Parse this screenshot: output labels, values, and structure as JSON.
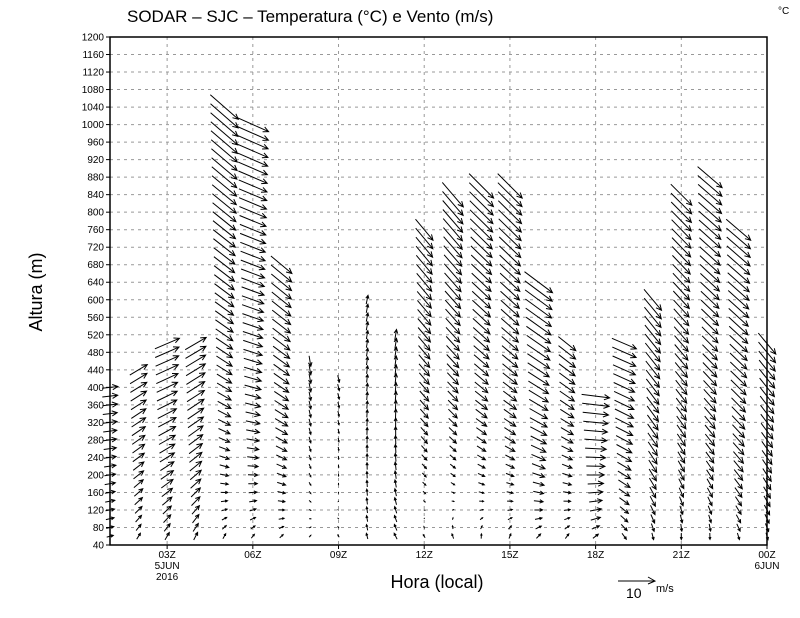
{
  "chart_data": {
    "type": "vector",
    "title": "SODAR – SJC – Temperatura (°C) e Vento (m/s)",
    "colorbar_unit": "°C",
    "xlabel": "Hora (local)",
    "ylabel": "Altura (m)",
    "xlim_hours": [
      1,
      24
    ],
    "ylim": [
      40,
      1200
    ],
    "grid": true,
    "x_ticks": [
      {
        "hour": 3,
        "label": "03Z",
        "sub1": "5JUN",
        "sub2": "2016"
      },
      {
        "hour": 6,
        "label": "06Z"
      },
      {
        "hour": 9,
        "label": "09Z"
      },
      {
        "hour": 12,
        "label": "12Z"
      },
      {
        "hour": 15,
        "label": "15Z"
      },
      {
        "hour": 18,
        "label": "18Z"
      },
      {
        "hour": 21,
        "label": "21Z"
      },
      {
        "hour": 24,
        "label": "00Z",
        "sub1": "6JUN"
      }
    ],
    "y_ticks": [
      40,
      80,
      120,
      160,
      200,
      240,
      280,
      320,
      360,
      400,
      440,
      480,
      520,
      560,
      600,
      640,
      680,
      720,
      760,
      800,
      840,
      880,
      920,
      960,
      1000,
      1040,
      1080,
      1120,
      1160,
      1200
    ],
    "level_step_m": 20,
    "reference_vector": {
      "value": 10,
      "label": "10",
      "unit": "m/s"
    },
    "profiles": [
      {
        "hour": 1,
        "top": 400,
        "u_base": 1.5,
        "v_base": 0.5,
        "u_top": 4.5,
        "v_top": 0.5
      },
      {
        "hour": 2,
        "top": 440,
        "u_base": 0.5,
        "v_base": 1.5,
        "u_top": 5,
        "v_top": 3
      },
      {
        "hour": 3,
        "top": 500,
        "u_base": 0.5,
        "v_base": 2,
        "u_top": 7,
        "v_top": 3
      },
      {
        "hour": 4,
        "top": 500,
        "u_base": 0.5,
        "v_base": 2,
        "u_top": 6,
        "v_top": 3.5
      },
      {
        "hour": 5,
        "top": 1040,
        "u_base": 0.3,
        "v_base": 2,
        "u_top": 8,
        "v_top": -7
      },
      {
        "hour": 6,
        "top": 1000,
        "u_base": 0.3,
        "v_base": 1.5,
        "u_top": 9,
        "v_top": -4
      },
      {
        "hour": 7,
        "top": 680,
        "u_base": 0.5,
        "v_base": 1.5,
        "u_top": 6,
        "v_top": -5
      },
      {
        "hour": 8,
        "top": 460,
        "u_base": 0.5,
        "v_base": 1,
        "u_top": 0.5,
        "v_top": -3
      },
      {
        "hour": 9,
        "top": 430,
        "u_base": -0.5,
        "v_base": 1,
        "u_top": 0.5,
        "v_top": -2
      },
      {
        "hour": 10,
        "top": 600,
        "u_base": -0.5,
        "v_base": 1.5,
        "u_top": 0.5,
        "v_top": 2.5
      },
      {
        "hour": 11,
        "top": 520,
        "u_base": -1,
        "v_base": 1.5,
        "u_top": 0.5,
        "v_top": 3
      },
      {
        "hour": 12,
        "top": 760,
        "u_base": -1,
        "v_base": 1.5,
        "u_top": 5,
        "v_top": -6
      },
      {
        "hour": 13,
        "top": 840,
        "u_base": -1,
        "v_base": 2,
        "u_top": 6,
        "v_top": -7
      },
      {
        "hour": 14,
        "top": 860,
        "u_base": -0.5,
        "v_base": 2,
        "u_top": 7,
        "v_top": -7
      },
      {
        "hour": 15,
        "top": 860,
        "u_base": 0,
        "v_base": 2,
        "u_top": 7,
        "v_top": -7
      },
      {
        "hour": 16,
        "top": 640,
        "u_base": 0.5,
        "v_base": 2,
        "u_top": 8,
        "v_top": -6
      },
      {
        "hour": 17,
        "top": 500,
        "u_base": 0.5,
        "v_base": 2,
        "u_top": 5,
        "v_top": -4
      },
      {
        "hour": 18,
        "top": 380,
        "u_base": 0.5,
        "v_base": 1.5,
        "u_top": 8,
        "v_top": -1
      },
      {
        "hour": 19,
        "top": 500,
        "u_base": 0.5,
        "v_base": -1.5,
        "u_top": 7,
        "v_top": -3
      },
      {
        "hour": 20,
        "top": 600,
        "u_base": 0,
        "v_base": -1.5,
        "u_top": 5,
        "v_top": -6
      },
      {
        "hour": 21,
        "top": 840,
        "u_base": -0.5,
        "v_base": -1.5,
        "u_top": 6,
        "v_top": -6
      },
      {
        "hour": 22,
        "top": 880,
        "u_base": -0.5,
        "v_base": -1.5,
        "u_top": 7,
        "v_top": -6
      },
      {
        "hour": 23,
        "top": 760,
        "u_base": 0,
        "v_base": -1.5,
        "u_top": 7,
        "v_top": -6
      },
      {
        "hour": 24,
        "top": 500,
        "u_base": 0,
        "v_base": -1.5,
        "u_top": 5,
        "v_top": -6
      }
    ]
  }
}
